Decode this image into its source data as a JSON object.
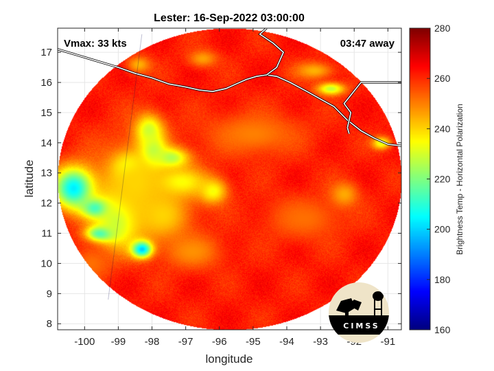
{
  "title": "Lester: 16-Sep-2022 03:00:00",
  "vmax_label": "Vmax: 33 kts",
  "away_label": "03:47 away",
  "xlabel": "longitude",
  "ylabel": "latitude",
  "colorbar_label": "Brightness Temp - Horizontal Polarization",
  "logo_text": "CIMSS",
  "chart_data": {
    "type": "heatmap",
    "title": "Lester: 16-Sep-2022 03:00:00",
    "xlabel": "longitude",
    "ylabel": "latitude",
    "xlim": [
      -100.8,
      -90.6
    ],
    "ylim": [
      7.8,
      17.8
    ],
    "x_ticks": [
      "-100",
      "-99",
      "-98",
      "-97",
      "-96",
      "-95",
      "-94",
      "-93",
      "-92",
      "-91"
    ],
    "x_tick_values": [
      -100,
      -99,
      -98,
      -97,
      -96,
      -95,
      -94,
      -93,
      -92,
      -91
    ],
    "y_ticks": [
      "8",
      "9",
      "10",
      "11",
      "12",
      "13",
      "14",
      "15",
      "16",
      "17"
    ],
    "y_tick_values": [
      8,
      9,
      10,
      11,
      12,
      13,
      14,
      15,
      16,
      17
    ],
    "grid": true,
    "colorbar": {
      "label": "Brightness Temp - Horizontal Polarization",
      "min": 160,
      "max": 280,
      "ticks": [
        "160",
        "180",
        "200",
        "220",
        "240",
        "260",
        "280"
      ],
      "tick_values": [
        160,
        180,
        200,
        220,
        240,
        260,
        280
      ],
      "colormap": "jet"
    },
    "swath": {
      "center": [
        -95.7,
        12.8
      ],
      "radius_lon": 5.1,
      "radius_lat": 5.0
    },
    "background_temp": 262,
    "features": [
      {
        "lon": -98.3,
        "lat": 10.5,
        "sigma_lon": 0.22,
        "sigma_lat": 0.2,
        "temp": 182
      },
      {
        "lon": -99.6,
        "lat": 11.85,
        "sigma_lon": 0.3,
        "sigma_lat": 0.22,
        "temp": 192
      },
      {
        "lon": -99.5,
        "lat": 11.0,
        "sigma_lon": 0.3,
        "sigma_lat": 0.18,
        "temp": 200
      },
      {
        "lon": -100.3,
        "lat": 12.5,
        "sigma_lon": 0.45,
        "sigma_lat": 0.5,
        "temp": 200
      },
      {
        "lon": -99.0,
        "lat": 11.5,
        "sigma_lon": 0.5,
        "sigma_lat": 0.7,
        "temp": 222
      },
      {
        "lon": -98.0,
        "lat": 13.7,
        "sigma_lon": 0.25,
        "sigma_lat": 0.4,
        "temp": 212
      },
      {
        "lon": -97.5,
        "lat": 13.5,
        "sigma_lon": 0.4,
        "sigma_lat": 0.25,
        "temp": 218
      },
      {
        "lon": -98.1,
        "lat": 14.4,
        "sigma_lon": 0.3,
        "sigma_lat": 0.4,
        "temp": 226
      },
      {
        "lon": -98.7,
        "lat": 13.2,
        "sigma_lon": 0.3,
        "sigma_lat": 0.3,
        "temp": 220
      },
      {
        "lon": -97.2,
        "lat": 12.7,
        "sigma_lon": 0.6,
        "sigma_lat": 0.35,
        "temp": 232
      },
      {
        "lon": -96.2,
        "lat": 12.4,
        "sigma_lon": 0.3,
        "sigma_lat": 0.3,
        "temp": 234
      },
      {
        "lon": -97.7,
        "lat": 11.6,
        "sigma_lon": 0.6,
        "sigma_lat": 0.6,
        "temp": 240
      },
      {
        "lon": -98.5,
        "lat": 12.7,
        "sigma_lon": 0.8,
        "sigma_lat": 1.0,
        "temp": 240
      },
      {
        "lon": -92.7,
        "lat": 15.8,
        "sigma_lon": 0.3,
        "sigma_lat": 0.15,
        "temp": 228
      },
      {
        "lon": -93.2,
        "lat": 16.4,
        "sigma_lon": 0.4,
        "sigma_lat": 0.2,
        "temp": 244
      },
      {
        "lon": -96.5,
        "lat": 16.8,
        "sigma_lon": 0.3,
        "sigma_lat": 0.2,
        "temp": 246
      },
      {
        "lon": -98.4,
        "lat": 16.6,
        "sigma_lon": 0.25,
        "sigma_lat": 0.2,
        "temp": 244
      },
      {
        "lon": -95.0,
        "lat": 14.3,
        "sigma_lon": 1.0,
        "sigma_lat": 0.5,
        "temp": 250
      },
      {
        "lon": -93.5,
        "lat": 11.5,
        "sigma_lon": 0.8,
        "sigma_lat": 0.5,
        "temp": 252
      },
      {
        "lon": -92.3,
        "lat": 12.3,
        "sigma_lon": 0.3,
        "sigma_lat": 0.3,
        "temp": 245
      },
      {
        "lon": -96.8,
        "lat": 10.4,
        "sigma_lon": 0.6,
        "sigma_lat": 0.4,
        "temp": 248
      },
      {
        "lon": -99.8,
        "lat": 10.0,
        "sigma_lon": 0.4,
        "sigma_lat": 0.4,
        "temp": 252
      },
      {
        "lon": -91.2,
        "lat": 14.0,
        "sigma_lon": 0.2,
        "sigma_lat": 0.15,
        "temp": 232
      }
    ],
    "coastline": [
      [
        -100.8,
        17.1
      ],
      [
        -100.2,
        16.9
      ],
      [
        -99.6,
        16.7
      ],
      [
        -99.0,
        16.5
      ],
      [
        -98.5,
        16.3
      ],
      [
        -98.0,
        16.15
      ],
      [
        -97.5,
        15.95
      ],
      [
        -97.0,
        15.85
      ],
      [
        -96.6,
        15.75
      ],
      [
        -96.2,
        15.7
      ],
      [
        -95.8,
        15.8
      ],
      [
        -95.5,
        15.95
      ],
      [
        -95.2,
        16.1
      ],
      [
        -94.9,
        16.2
      ],
      [
        -94.6,
        16.25
      ],
      [
        -94.3,
        16.2
      ],
      [
        -93.9,
        16.0
      ],
      [
        -93.4,
        15.7
      ],
      [
        -93.0,
        15.45
      ],
      [
        -92.6,
        15.2
      ],
      [
        -92.2,
        14.75
      ],
      [
        -91.8,
        14.4
      ],
      [
        -91.4,
        14.15
      ],
      [
        -91.0,
        13.95
      ],
      [
        -90.6,
        13.9
      ]
    ],
    "borders": [
      [
        [
          -92.2,
          14.5
        ],
        [
          -92.1,
          15.0
        ],
        [
          -92.3,
          15.3
        ],
        [
          -91.8,
          16.0
        ],
        [
          -90.6,
          16.0
        ]
      ],
      [
        [
          -92.2,
          14.5
        ],
        [
          -92.15,
          14.3
        ]
      ],
      [
        [
          -94.6,
          16.25
        ],
        [
          -94.3,
          16.5
        ],
        [
          -94.1,
          17.0
        ],
        [
          -94.4,
          17.3
        ],
        [
          -94.8,
          17.6
        ],
        [
          -94.6,
          17.8
        ]
      ]
    ],
    "orbit_seam": [
      [
        -99.3,
        8.8
      ],
      [
        -98.3,
        17.6
      ]
    ]
  }
}
